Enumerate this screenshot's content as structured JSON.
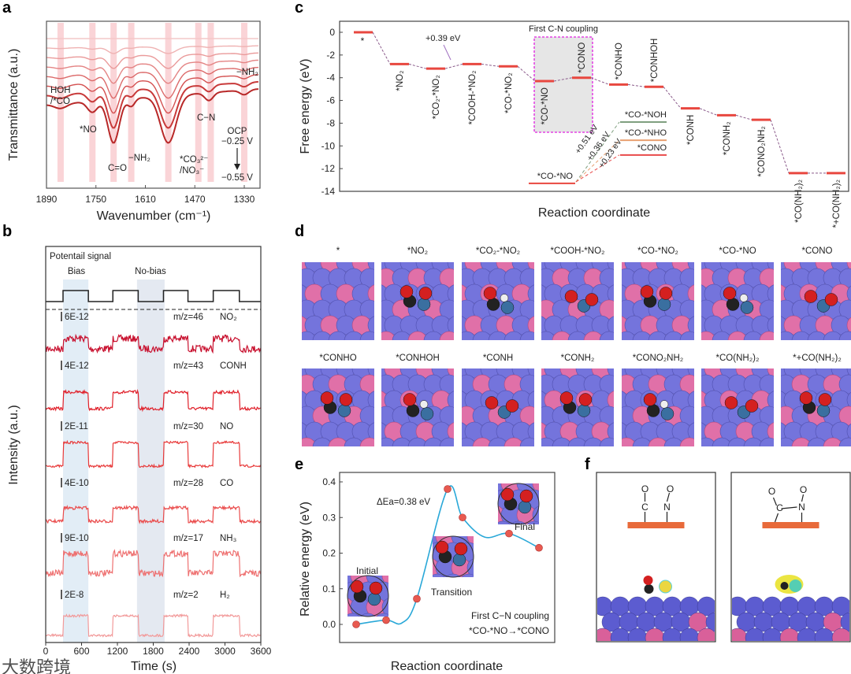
{
  "panels": {
    "a": "a",
    "b": "b",
    "c": "c",
    "d": "d",
    "e": "e",
    "f": "f"
  },
  "watermark": "大数跨境",
  "chart_data": [
    {
      "id": "a",
      "type": "line",
      "xlabel": "Wavenumber (cm⁻¹)",
      "ylabel": "Transmittance (a.u.)",
      "xlim": [
        1890,
        1290
      ],
      "xticks": [
        "1890",
        "1750",
        "1610",
        "1470",
        "1330"
      ],
      "series_count": 8,
      "bands": [
        1850,
        1760,
        1700,
        1650,
        1545,
        1460,
        1425,
        1330
      ],
      "peaks": [
        {
          "label": "HOH",
          "label2": "/*CO",
          "x": 1850
        },
        {
          "label": "*NO",
          "x": 1760
        },
        {
          "label": "C=O",
          "x": 1700
        },
        {
          "label": "−NH₂",
          "x": 1650
        },
        {
          "label": "*CO₃²⁻",
          "label2": "/NO₃⁻",
          "x": 1545
        },
        {
          "label": "C−N",
          "x": 1430
        },
        {
          "label": "−NH₂",
          "x": 1330
        }
      ],
      "potential_note": {
        "top": "OCP",
        "mid": "−0.25 V",
        "bottom": "−0.55 V"
      }
    },
    {
      "id": "b",
      "type": "line",
      "xlabel": "Time (s)",
      "ylabel": "Intensity (a.u.)",
      "xlim": [
        0,
        3600
      ],
      "xticks": [
        "0",
        "600",
        "1200",
        "1800",
        "2400",
        "3000",
        "3600"
      ],
      "potential_title": "Potentail signal",
      "bias_label": "Bias",
      "nobias_label": "No-bias",
      "bias_intervals": [
        [
          290,
          714
        ],
        [
          1124,
          1548
        ],
        [
          1971,
          2381
        ],
        [
          2804,
          3241
        ]
      ],
      "series": [
        {
          "scale": "6E-12",
          "mz": "m/z=46",
          "species": "NO₂",
          "color": "#c8102e"
        },
        {
          "scale": "4E-12",
          "mz": "m/z=43",
          "species": "CONH",
          "color": "#e0202a"
        },
        {
          "scale": "2E-11",
          "mz": "m/z=30",
          "species": "NO",
          "color": "#e83a3a"
        },
        {
          "scale": "4E-10",
          "mz": "m/z=28",
          "species": "CO",
          "color": "#ea4c4c"
        },
        {
          "scale": "9E-10",
          "mz": "m/z=17",
          "species": "NH₃",
          "color": "#ee7070"
        },
        {
          "scale": "2E-8",
          "mz": "m/z=2",
          "species": "H₂",
          "color": "#f29a9a"
        }
      ]
    },
    {
      "id": "c",
      "type": "line",
      "xlabel": "Reaction coordinate",
      "ylabel": "Free energy (eV)",
      "ylim": [
        -14,
        0.6
      ],
      "yticks": [
        "0",
        "-2",
        "-4",
        "-6",
        "-8",
        "-10",
        "-12",
        "-14"
      ],
      "steps": [
        {
          "label": "*",
          "value": 0
        },
        {
          "label": "*NO₂",
          "value": -2.8
        },
        {
          "label": "*CO₂-*NO₂",
          "value": -3.2
        },
        {
          "label": "*COOH-*NO₂",
          "value": -2.8
        },
        {
          "label": "*CO-*NO₂",
          "value": -3.0
        },
        {
          "label": "*CO-*NO",
          "value": -4.3
        },
        {
          "label": "*CONO",
          "value": -4.0
        },
        {
          "label": "*CONHO",
          "value": -4.6
        },
        {
          "label": "*CONHOH",
          "value": -4.8
        },
        {
          "label": "*CONH",
          "value": -6.7
        },
        {
          "label": "*CONH₂",
          "value": -7.3
        },
        {
          "label": "*CONO₂NH₂",
          "value": -7.7
        },
        {
          "label": "*CO(NH₂)₂",
          "value": -12.4
        },
        {
          "label": "*+CO(NH₂)₂",
          "value": -12.4
        }
      ],
      "barrier_note": "+0.39 eV",
      "highlight_label": "First C-N coupling",
      "inset": {
        "start": {
          "label": "*CO-*NO",
          "value": -13.3
        },
        "paths": [
          {
            "label": "*CO-*NOH",
            "value": -7.9,
            "barrier": "+0.51 eV",
            "color": "#7f9f7f"
          },
          {
            "label": "*CO-*NHO",
            "value": -9.5,
            "barrier": "+0.36 eV",
            "color": "#e8a070"
          },
          {
            "label": "*CONO",
            "value": -10.8,
            "barrier": "+0.23 eV",
            "color": "#e84a4a"
          }
        ]
      }
    },
    {
      "id": "e",
      "type": "line",
      "xlabel": "Reaction coordinate",
      "ylabel": "Relative energy (eV)",
      "ylim": [
        -0.03,
        0.42
      ],
      "yticks": [
        "0.0",
        "0.1",
        "0.2",
        "0.3",
        "0.4"
      ],
      "points": [
        0.0,
        0.012,
        0.072,
        0.38,
        0.3,
        0.255,
        0.215
      ],
      "annotation": "ΔEa=0.38 eV",
      "states": {
        "initial": "Initial",
        "transition": "Transition",
        "final": "Final"
      },
      "note1": "First C−N coupling",
      "note2": "*CO-*NO→*CONO"
    }
  ],
  "structures": {
    "row1": [
      "*",
      "*NO₂",
      "*CO₂-*NO₂",
      "*COOH-*NO₂",
      "*CO-*NO₂",
      "*CO-*NO",
      "*CONO"
    ],
    "row2": [
      "*CONHO",
      "*CONHOH",
      "*CONH",
      "*CONH₂",
      "*CONO₂NH₂",
      "*CO(NH₂)₂",
      "*+CO(NH₂)₂"
    ]
  },
  "panel_f": {
    "left": {
      "o1": "O",
      "c": "C",
      "o2": "O",
      "n": "N"
    },
    "right": {
      "o1": "O",
      "c": "C",
      "o2": "O",
      "n": "N"
    }
  },
  "colors": {
    "accent": "#e8473f",
    "magenta": "#e020e0",
    "curve": "#29a8d8",
    "surface_pink": "#d9609a",
    "surface_blue": "#6f6fd8"
  }
}
